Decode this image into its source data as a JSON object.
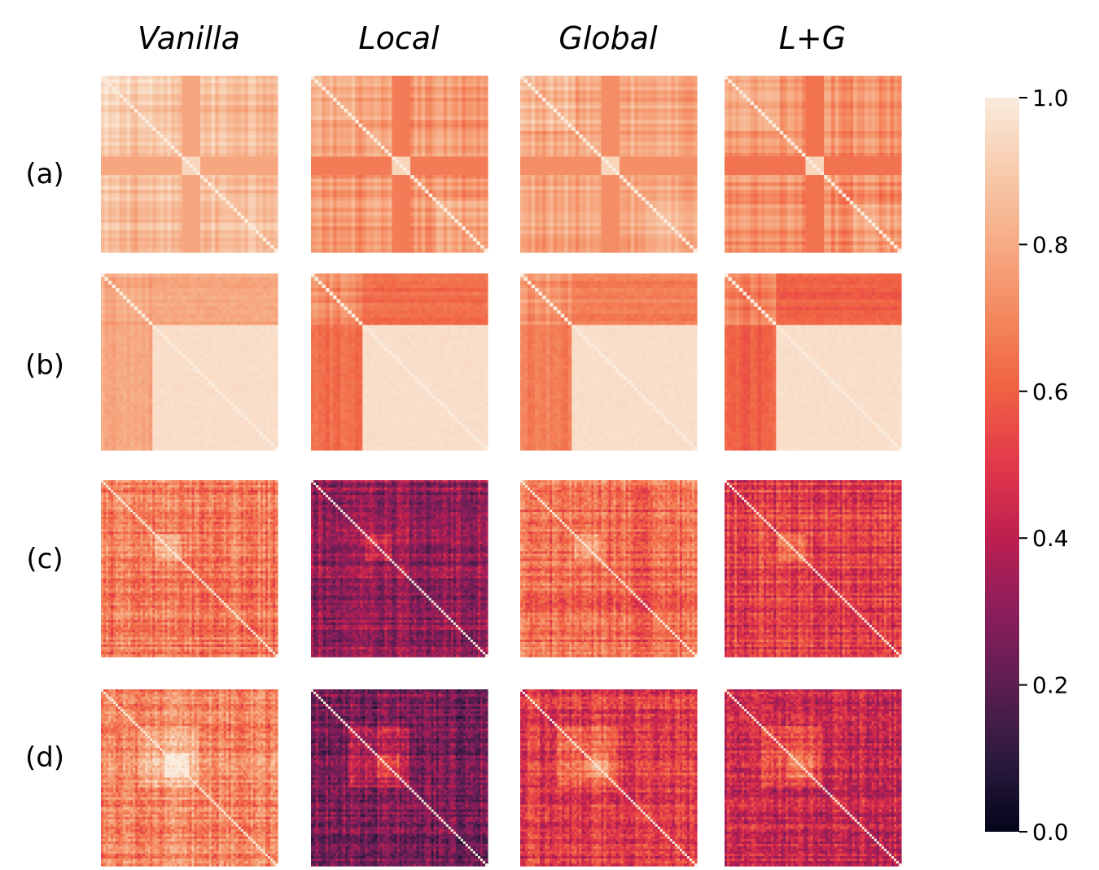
{
  "chart_data": {
    "type": "heatmap",
    "columns": [
      "Vanilla",
      "Local",
      "Global",
      "L+G"
    ],
    "rows": [
      "(a)",
      "(b)",
      "(c)",
      "(d)"
    ],
    "colorbar": {
      "min": 0.0,
      "max": 1.0,
      "ticks": [
        "0.0",
        "0.2",
        "0.4",
        "0.6",
        "0.8",
        "1.0"
      ],
      "colormap": "rocket",
      "stops": [
        "#03051a",
        "#2d1a3f",
        "#5c1e51",
        "#8b1e5c",
        "#bd1f4f",
        "#e2384a",
        "#f06043",
        "#f4875e",
        "#f6ab84",
        "#f7cbac",
        "#faebdd"
      ]
    },
    "panels": [
      {
        "row": "(a)",
        "column": "Vanilla",
        "structure": "block",
        "approx_mean": 0.86,
        "block_size_fraction": 0.12
      },
      {
        "row": "(a)",
        "column": "Local",
        "structure": "block",
        "approx_mean": 0.74,
        "block_size_fraction": 0.12
      },
      {
        "row": "(a)",
        "column": "Global",
        "structure": "block",
        "approx_mean": 0.79,
        "block_size_fraction": 0.12
      },
      {
        "row": "(a)",
        "column": "L+G",
        "structure": "block",
        "approx_mean": 0.72,
        "block_size_fraction": 0.12
      },
      {
        "row": "(b)",
        "column": "Vanilla",
        "structure": "two-cluster",
        "approx_mean_small_cluster": 0.82,
        "approx_mean_large_cluster": 0.96,
        "approx_cross": 0.8,
        "split_fraction": 0.28
      },
      {
        "row": "(b)",
        "column": "Local",
        "structure": "two-cluster",
        "approx_mean_small_cluster": 0.7,
        "approx_mean_large_cluster": 0.96,
        "approx_cross": 0.63,
        "split_fraction": 0.28
      },
      {
        "row": "(b)",
        "column": "Global",
        "structure": "two-cluster",
        "approx_mean_small_cluster": 0.74,
        "approx_mean_large_cluster": 0.96,
        "approx_cross": 0.68,
        "split_fraction": 0.28
      },
      {
        "row": "(b)",
        "column": "L+G",
        "structure": "two-cluster",
        "approx_mean_small_cluster": 0.68,
        "approx_mean_large_cluster": 0.96,
        "approx_cross": 0.6,
        "split_fraction": 0.28
      },
      {
        "row": "(c)",
        "column": "Vanilla",
        "structure": "noisy",
        "approx_mean": 0.66
      },
      {
        "row": "(c)",
        "column": "Local",
        "structure": "noisy",
        "approx_mean": 0.3
      },
      {
        "row": "(c)",
        "column": "Global",
        "structure": "noisy",
        "approx_mean": 0.62
      },
      {
        "row": "(c)",
        "column": "L+G",
        "structure": "noisy",
        "approx_mean": 0.52
      },
      {
        "row": "(d)",
        "column": "Vanilla",
        "structure": "noisy-block",
        "approx_mean": 0.7
      },
      {
        "row": "(d)",
        "column": "Local",
        "structure": "noisy-block",
        "approx_mean": 0.26
      },
      {
        "row": "(d)",
        "column": "Global",
        "structure": "noisy-block",
        "approx_mean": 0.5
      },
      {
        "row": "(d)",
        "column": "L+G",
        "structure": "noisy-block",
        "approx_mean": 0.42
      }
    ]
  }
}
